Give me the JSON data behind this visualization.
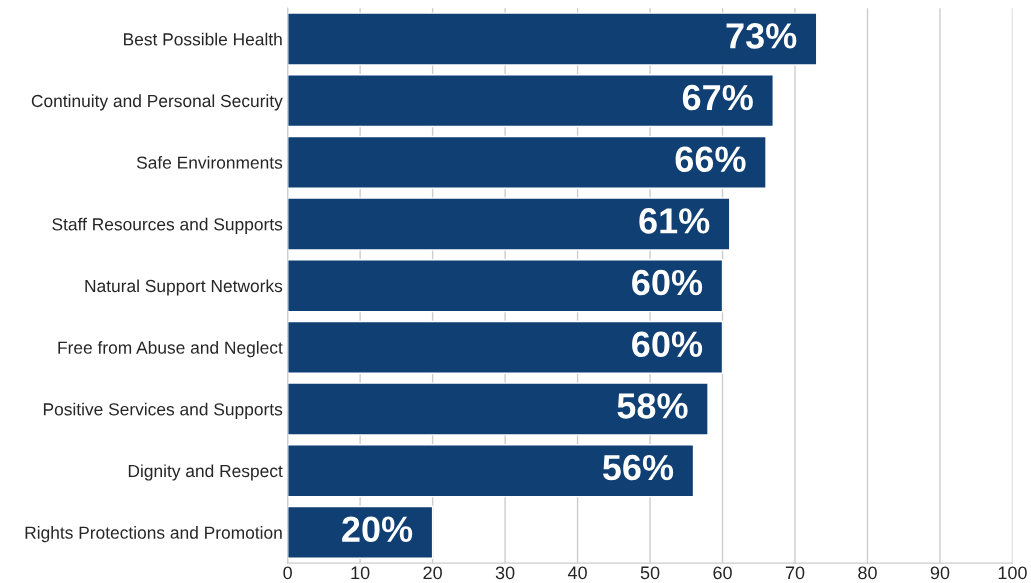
{
  "chart_data": {
    "type": "bar",
    "orientation": "horizontal",
    "categories": [
      "Best Possible Health",
      "Continuity and Personal Security",
      "Safe Environments",
      "Staff Resources and Supports",
      "Natural Support Networks",
      "Free from Abuse and Neglect",
      "Positive Services and Supports",
      "Dignity and Respect",
      "Rights Protections and Promotion"
    ],
    "values": [
      73,
      67,
      66,
      61,
      60,
      60,
      58,
      56,
      20
    ],
    "value_labels": [
      "73%",
      "67%",
      "66%",
      "61%",
      "60%",
      "60%",
      "58%",
      "56%",
      "20%"
    ],
    "color": "#0f3f73",
    "xlim": [
      0,
      100
    ],
    "xticks": [
      0,
      10,
      20,
      30,
      40,
      50,
      60,
      70,
      80,
      90,
      100
    ],
    "grid": "x",
    "legend": false
  }
}
